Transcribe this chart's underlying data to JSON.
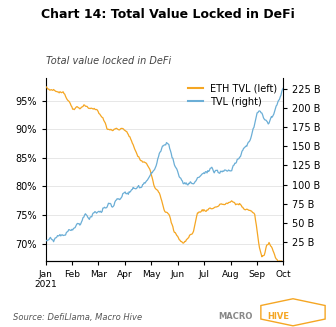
{
  "title": "Chart 14: Total Value Locked in DeFi",
  "subtitle": "Total value locked in DeFi",
  "source": "Source: DefiLlama, Macro Hive",
  "left_label": "ETH TVL (left)",
  "right_label": "TVL (right)",
  "left_color": "#F5A623",
  "right_color": "#6BAED6",
  "left_ylim": [
    0.67,
    0.99
  ],
  "right_ylim": [
    0,
    240
  ],
  "left_yticks": [
    0.7,
    0.75,
    0.8,
    0.85,
    0.9,
    0.95
  ],
  "left_yticklabels": [
    "70%",
    "75%",
    "80%",
    "85%",
    "90%",
    "95%"
  ],
  "right_yticks": [
    25,
    50,
    75,
    100,
    125,
    150,
    175,
    200,
    225
  ],
  "right_yticklabels": [
    "25 B",
    "50 B",
    "75 B",
    "100 B",
    "125 B",
    "150 B",
    "175 B",
    "200 B",
    "225 B"
  ],
  "xticklabels": [
    "Jan\n2021",
    "Feb",
    "Mar",
    "Apr",
    "May",
    "Jun",
    "Jul",
    "Aug",
    "Sep",
    "Oct"
  ],
  "title_fontsize": 9,
  "subtitle_fontsize": 7,
  "tick_fontsize": 7,
  "source_fontsize": 6,
  "legend_fontsize": 7
}
